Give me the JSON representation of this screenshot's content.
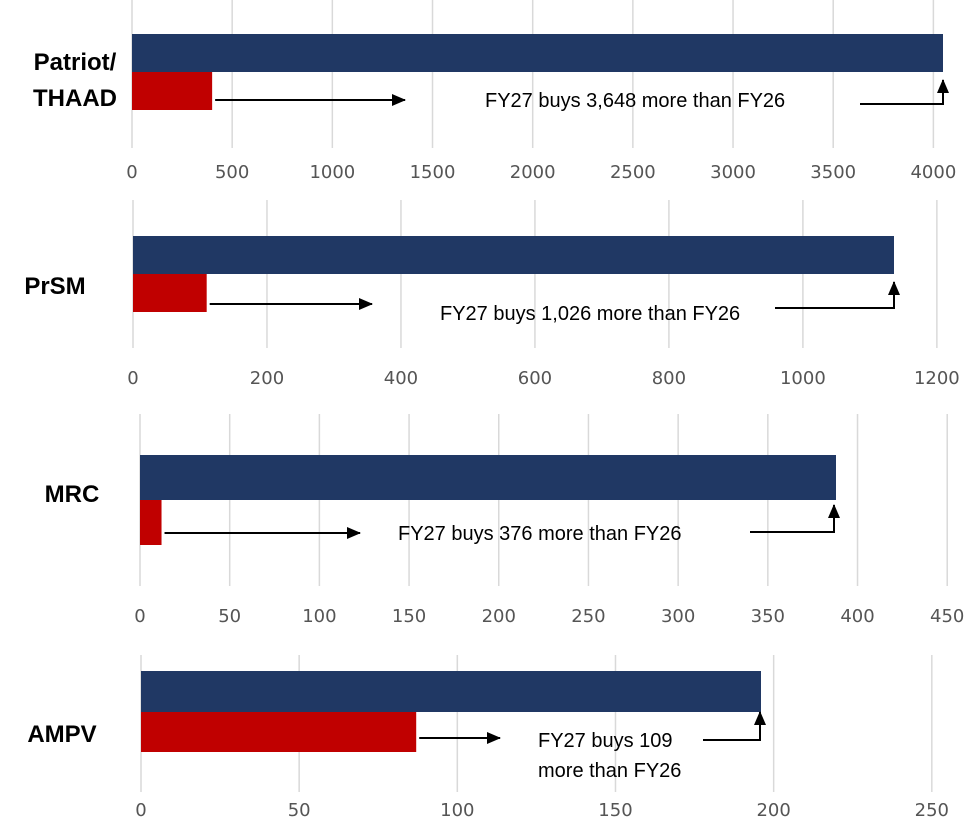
{
  "colors": {
    "fy27": "#203864",
    "fy26": "#c00000"
  },
  "chart_data": [
    {
      "type": "bar",
      "orientation": "horizontal",
      "category_label": [
        "Patriot/",
        "THAAD"
      ],
      "series": [
        {
          "values": [
            4048
          ]
        },
        {
          "values": [
            400
          ]
        }
      ],
      "xlim": [
        0,
        4000
      ],
      "ticks": [
        0,
        500,
        1000,
        1500,
        2000,
        2500,
        3000,
        3500,
        4000
      ],
      "grid": true,
      "annotation": [
        "FY27 buys 3,648 more than FY26"
      ]
    },
    {
      "type": "bar",
      "orientation": "horizontal",
      "category_label": [
        "PrSM"
      ],
      "series": [
        {
          "values": [
            1136
          ]
        },
        {
          "values": [
            110
          ]
        }
      ],
      "xlim": [
        0,
        1200
      ],
      "ticks": [
        0,
        200,
        400,
        600,
        800,
        1000,
        1200
      ],
      "grid": true,
      "annotation": [
        "FY27 buys 1,026 more than FY26"
      ]
    },
    {
      "type": "bar",
      "orientation": "horizontal",
      "category_label": [
        "MRC"
      ],
      "series": [
        {
          "values": [
            388
          ]
        },
        {
          "values": [
            12
          ]
        }
      ],
      "xlim": [
        0,
        450
      ],
      "ticks": [
        0,
        50,
        100,
        150,
        200,
        250,
        300,
        350,
        400,
        450
      ],
      "grid": true,
      "annotation": [
        "FY27 buys 376 more than FY26"
      ]
    },
    {
      "type": "bar",
      "orientation": "horizontal",
      "category_label": [
        "AMPV"
      ],
      "series": [
        {
          "values": [
            196
          ]
        },
        {
          "values": [
            87
          ]
        }
      ],
      "xlim": [
        0,
        250
      ],
      "ticks": [
        0,
        50,
        100,
        150,
        200,
        250
      ],
      "grid": true,
      "annotation": [
        "FY27 buys 109",
        "more than FY26"
      ]
    }
  ]
}
